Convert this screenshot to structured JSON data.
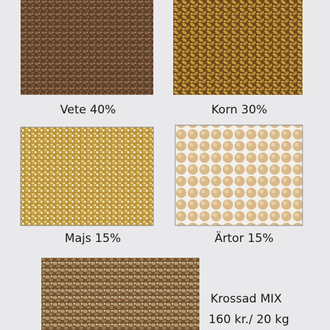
{
  "samples": [
    {
      "label": "Vete 40%"
    },
    {
      "label": "Korn 30%"
    },
    {
      "label": "Majs 15%"
    },
    {
      "label": "Ärtor 15%"
    }
  ],
  "mix": {
    "title": "Krossad MIX",
    "price": "160 kr./ 20 kg"
  }
}
